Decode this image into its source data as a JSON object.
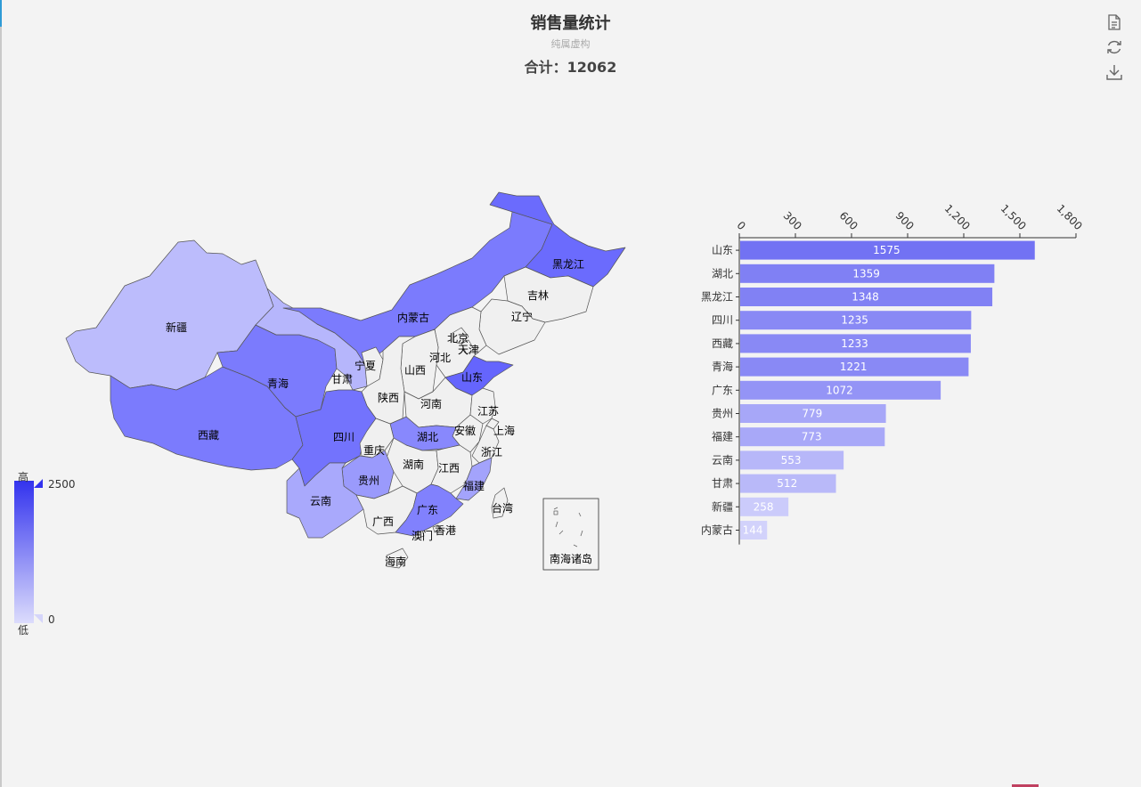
{
  "title": "销售量统计",
  "subtitle": "纯属虚构",
  "total_label": "合计：12062",
  "toolbox": [
    "data-view-icon",
    "restore-icon",
    "save-image-icon"
  ],
  "visual_map": {
    "text_high": "高",
    "text_low": "低",
    "max": "2500",
    "min": "0"
  },
  "colors": {
    "high": "#3333ee",
    "low": "#dcdcfc",
    "base": "#f0f0f0",
    "border": "#555555"
  },
  "map_labels": [
    "新疆",
    "西藏",
    "青海",
    "甘肃",
    "内蒙古",
    "黑龙江",
    "吉林",
    "辽宁",
    "北京",
    "天津",
    "河北",
    "山西",
    "宁夏",
    "陕西",
    "河南",
    "山东",
    "江苏",
    "安徽",
    "上海",
    "浙江",
    "湖北",
    "四川",
    "重庆",
    "湖南",
    "江西",
    "福建",
    "贵州",
    "云南",
    "广西",
    "广东",
    "香港",
    "澳门",
    "台湾",
    "海南",
    "南海诸岛"
  ],
  "chart_data": {
    "type": "bar",
    "orientation": "horizontal",
    "categories": [
      "山东",
      "湖北",
      "黑龙江",
      "四川",
      "西藏",
      "青海",
      "广东",
      "贵州",
      "福建",
      "云南",
      "甘肃",
      "新疆",
      "内蒙古"
    ],
    "values": [
      1575,
      1359,
      1348,
      1235,
      1233,
      1221,
      1072,
      779,
      773,
      553,
      512,
      258,
      144
    ],
    "value_axis": {
      "min": 0,
      "max": 1800,
      "ticks": [
        "0",
        "300",
        "600",
        "900",
        "1,200",
        "1,500",
        "1,800"
      ],
      "position": "top"
    },
    "color_range": {
      "min": 0,
      "max": 2500
    }
  }
}
